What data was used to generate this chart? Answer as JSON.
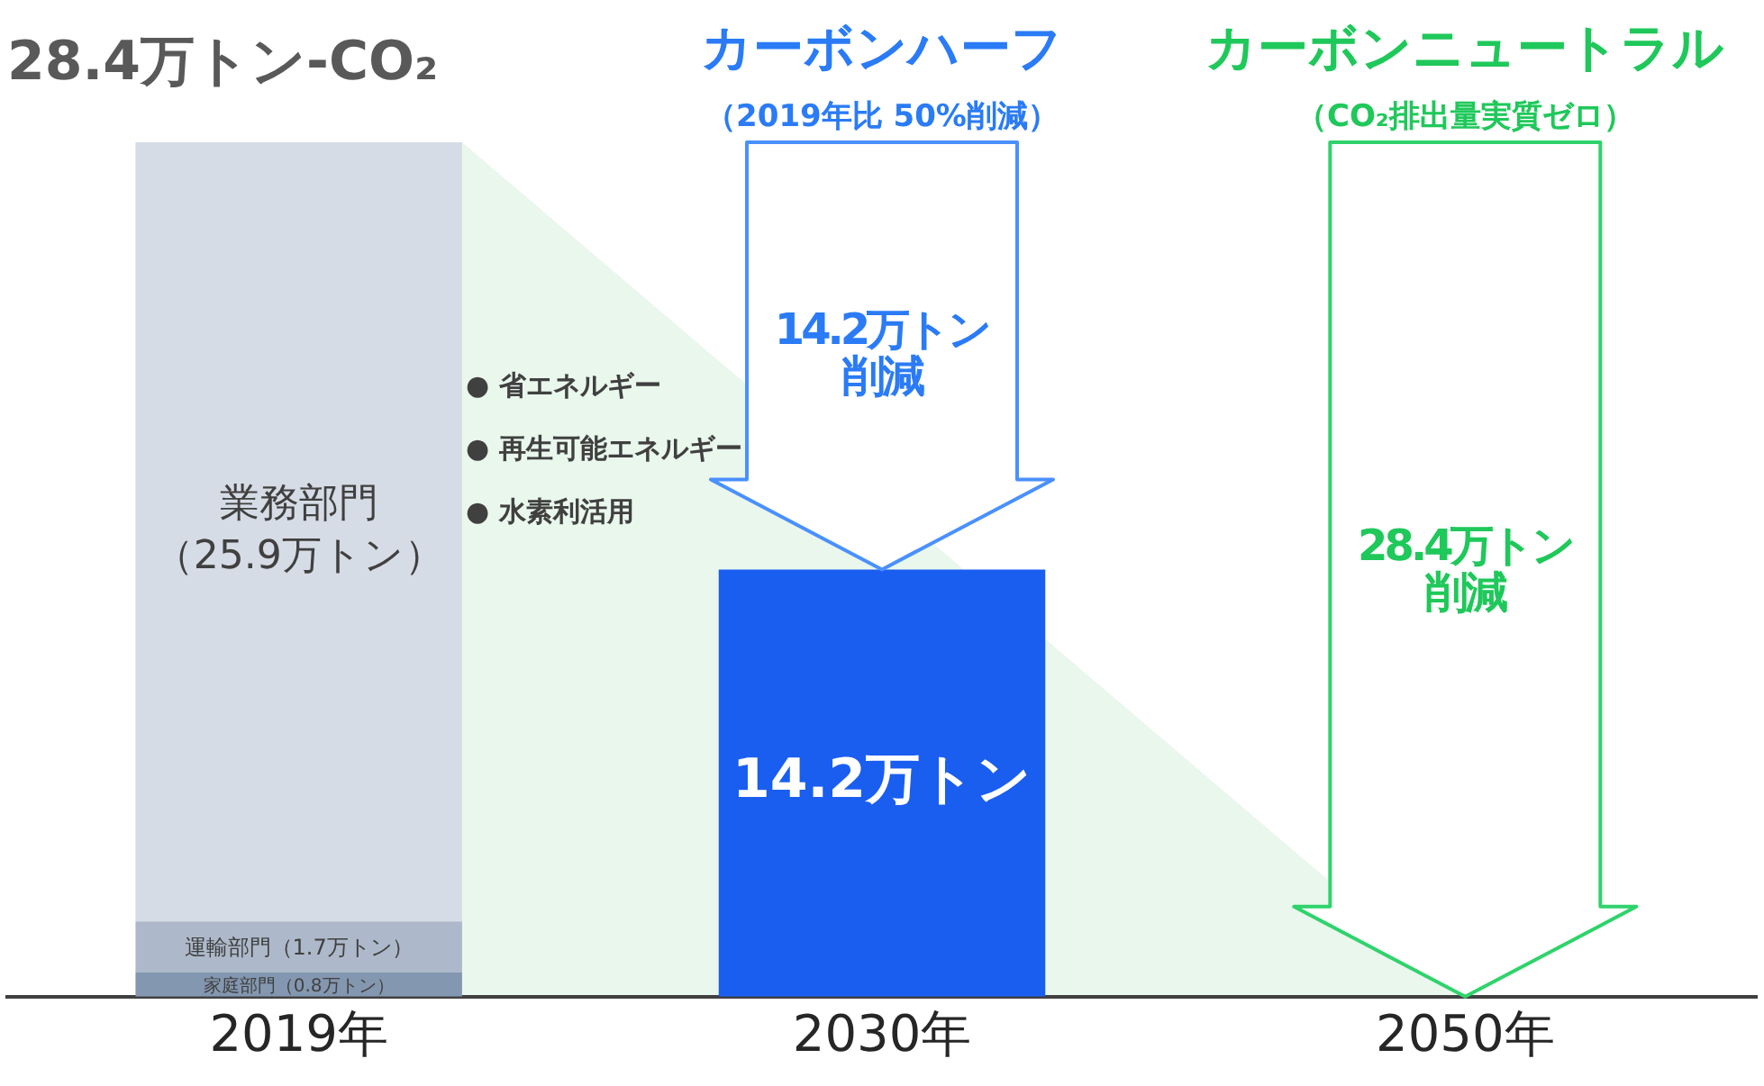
{
  "chart_data": {
    "type": "bar",
    "stacked": true,
    "title": "28.4万トン-CO₂",
    "categories": [
      "2019年",
      "2030年",
      "2050年"
    ],
    "series": [
      {
        "name": "家庭部門",
        "color": "#8497b0",
        "values": [
          0.8,
          null,
          null
        ],
        "value_labels": [
          "（0.8万トン）",
          null,
          null
        ]
      },
      {
        "name": "運輸部門",
        "color": "#adb9ca",
        "values": [
          1.7,
          null,
          null
        ],
        "value_labels": [
          "（1.7万トン）",
          null,
          null
        ]
      },
      {
        "name": "業務部門",
        "color": "#d6dce5",
        "values": [
          25.9,
          null,
          null
        ],
        "value_labels": [
          "（25.9万トン）",
          null,
          null
        ]
      },
      {
        "color": "#1a5ef0",
        "values": [
          null,
          14.2,
          null
        ],
        "value_labels": [
          null,
          "14.2万トン",
          null
        ]
      }
    ],
    "ylim": [
      0,
      28.4
    ],
    "tick_labels": "x",
    "grid": false,
    "legend": false,
    "annotations": [
      "カーボンハーフ",
      "（2019年比  50%削減）",
      "14.2万トン削減",
      "カーボンニュートラル",
      "（CO₂排出量実質ゼロ）",
      "28.4万トン削減",
      "● 省エネルギー",
      "● 再生可能エネルギー",
      "● 水素利活用"
    ]
  }
}
